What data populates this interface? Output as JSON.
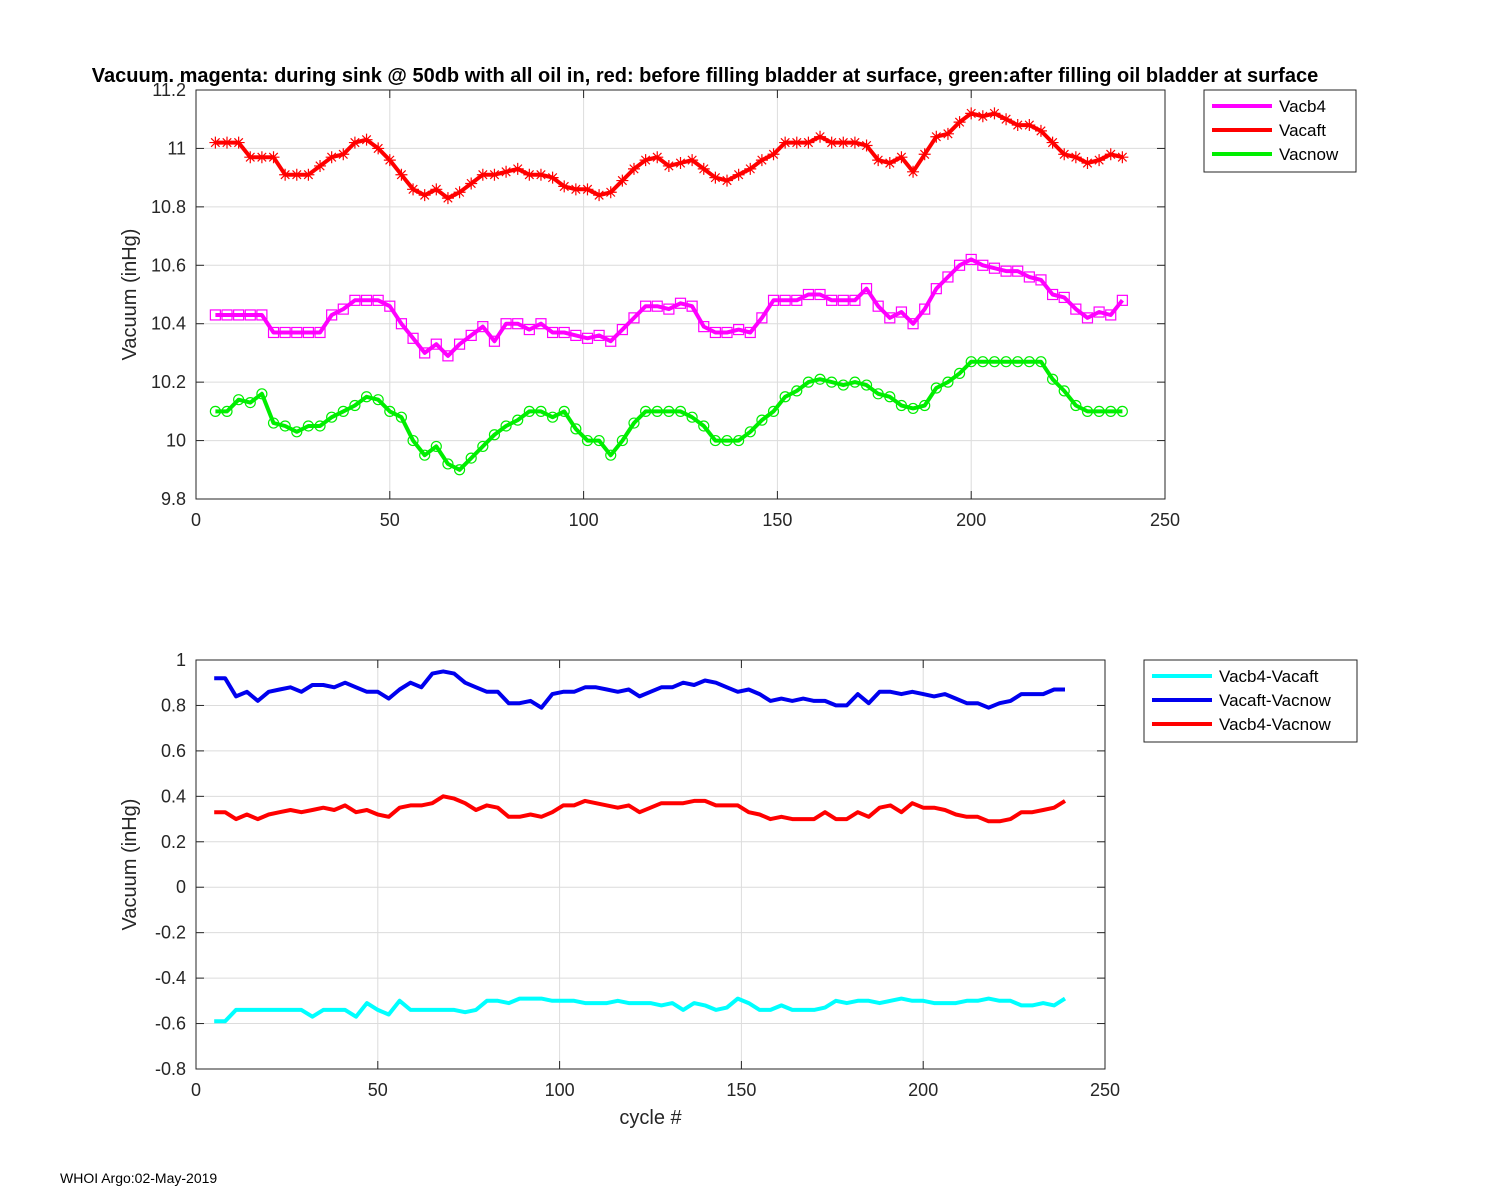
{
  "title": "Vacuum. magenta: during sink @ 50db with all oil in, red: before filling bladder at surface, green:after filling oil bladder at surface",
  "footer": "WHOI Argo:02-May-2019",
  "chart_data": [
    {
      "type": "line",
      "title": "Vacuum. magenta: during sink @ 50db with all oil in, red: before filling bladder at surface, green:after filling oil bladder at surface",
      "xlabel": "",
      "ylabel": "Vacuum (inHg)",
      "xlim": [
        0,
        250
      ],
      "ylim": [
        9.8,
        11.2
      ],
      "xticks": [
        0,
        50,
        100,
        150,
        200,
        250
      ],
      "yticks": [
        9.8,
        10,
        10.2,
        10.4,
        10.6,
        10.8,
        11,
        11.2
      ],
      "xtick_labels": [
        "0",
        "50",
        "100",
        "150",
        "200",
        "250"
      ],
      "ytick_labels": [
        "9.8",
        "10",
        "10.2",
        "10.4",
        "10.6",
        "10.8",
        "11",
        "11.2"
      ],
      "grid": true,
      "legend_position": "outside-top-right",
      "series": [
        {
          "name": "Vacb4",
          "color": "#ff00ff",
          "marker": "square",
          "x": [
            5,
            8,
            11,
            14,
            17,
            20,
            23,
            26,
            29,
            32,
            35,
            38,
            41,
            44,
            47,
            50,
            53,
            56,
            59,
            62,
            65,
            68,
            71,
            74,
            77,
            80,
            83,
            86,
            89,
            92,
            95,
            98,
            101,
            104,
            107,
            110,
            113,
            116,
            119,
            122,
            125,
            128,
            131,
            134,
            137,
            140,
            143,
            146,
            149,
            152,
            155,
            158,
            161,
            164,
            167,
            170,
            173,
            176,
            179,
            182,
            185,
            188,
            191,
            194,
            197,
            200,
            203,
            206,
            209,
            212,
            215,
            218,
            221,
            224,
            227,
            230,
            233,
            236,
            239
          ],
          "y": [
            10.43,
            10.43,
            10.43,
            10.43,
            10.43,
            10.37,
            10.37,
            10.37,
            10.37,
            10.37,
            10.43,
            10.45,
            10.48,
            10.48,
            10.48,
            10.46,
            10.4,
            10.35,
            10.3,
            10.33,
            10.29,
            10.33,
            10.36,
            10.39,
            10.34,
            10.4,
            10.4,
            10.38,
            10.4,
            10.37,
            10.37,
            10.36,
            10.35,
            10.36,
            10.34,
            10.38,
            10.42,
            10.46,
            10.46,
            10.45,
            10.47,
            10.46,
            10.39,
            10.37,
            10.37,
            10.38,
            10.37,
            10.42,
            10.48,
            10.48,
            10.48,
            10.5,
            10.5,
            10.48,
            10.48,
            10.48,
            10.52,
            10.46,
            10.42,
            10.44,
            10.4,
            10.45,
            10.52,
            10.56,
            10.6,
            10.62,
            10.6,
            10.59,
            10.58,
            10.58,
            10.56,
            10.55,
            10.5,
            10.49,
            10.45,
            10.42,
            10.44,
            10.43,
            10.48
          ]
        },
        {
          "name": "Vacaft",
          "color": "#ff0000",
          "marker": "star",
          "x": [
            5,
            8,
            11,
            14,
            17,
            20,
            23,
            26,
            29,
            32,
            35,
            38,
            41,
            44,
            47,
            50,
            53,
            56,
            59,
            62,
            65,
            68,
            71,
            74,
            77,
            80,
            83,
            86,
            89,
            92,
            95,
            98,
            101,
            104,
            107,
            110,
            113,
            116,
            119,
            122,
            125,
            128,
            131,
            134,
            137,
            140,
            143,
            146,
            149,
            152,
            155,
            158,
            161,
            164,
            167,
            170,
            173,
            176,
            179,
            182,
            185,
            188,
            191,
            194,
            197,
            200,
            203,
            206,
            209,
            212,
            215,
            218,
            221,
            224,
            227,
            230,
            233,
            236,
            239
          ],
          "y": [
            11.02,
            11.02,
            11.02,
            10.97,
            10.97,
            10.97,
            10.91,
            10.91,
            10.91,
            10.94,
            10.97,
            10.98,
            11.02,
            11.03,
            11.0,
            10.96,
            10.91,
            10.86,
            10.84,
            10.86,
            10.83,
            10.85,
            10.88,
            10.91,
            10.91,
            10.92,
            10.93,
            10.91,
            10.91,
            10.9,
            10.87,
            10.86,
            10.86,
            10.84,
            10.85,
            10.89,
            10.93,
            10.96,
            10.97,
            10.94,
            10.95,
            10.96,
            10.93,
            10.9,
            10.89,
            10.91,
            10.93,
            10.96,
            10.98,
            11.02,
            11.02,
            11.02,
            11.04,
            11.02,
            11.02,
            11.02,
            11.01,
            10.96,
            10.95,
            10.97,
            10.92,
            10.98,
            11.04,
            11.05,
            11.09,
            11.12,
            11.11,
            11.12,
            11.1,
            11.08,
            11.08,
            11.06,
            11.02,
            10.98,
            10.97,
            10.95,
            10.96,
            10.98,
            10.97
          ]
        },
        {
          "name": "Vacnow",
          "color": "#00ee00",
          "marker": "circle",
          "x": [
            5,
            8,
            11,
            14,
            17,
            20,
            23,
            26,
            29,
            32,
            35,
            38,
            41,
            44,
            47,
            50,
            53,
            56,
            59,
            62,
            65,
            68,
            71,
            74,
            77,
            80,
            83,
            86,
            89,
            92,
            95,
            98,
            101,
            104,
            107,
            110,
            113,
            116,
            119,
            122,
            125,
            128,
            131,
            134,
            137,
            140,
            143,
            146,
            149,
            152,
            155,
            158,
            161,
            164,
            167,
            170,
            173,
            176,
            179,
            182,
            185,
            188,
            191,
            194,
            197,
            200,
            203,
            206,
            209,
            212,
            215,
            218,
            221,
            224,
            227,
            230,
            233,
            236,
            239
          ],
          "y": [
            10.1,
            10.1,
            10.14,
            10.13,
            10.16,
            10.06,
            10.05,
            10.03,
            10.05,
            10.05,
            10.08,
            10.1,
            10.12,
            10.15,
            10.14,
            10.1,
            10.08,
            10.0,
            9.95,
            9.98,
            9.92,
            9.9,
            9.94,
            9.98,
            10.02,
            10.05,
            10.07,
            10.1,
            10.1,
            10.08,
            10.1,
            10.04,
            10.0,
            10.0,
            9.95,
            10.0,
            10.06,
            10.1,
            10.1,
            10.1,
            10.1,
            10.08,
            10.05,
            10.0,
            10.0,
            10.0,
            10.03,
            10.07,
            10.1,
            10.15,
            10.17,
            10.2,
            10.21,
            10.2,
            10.19,
            10.2,
            10.19,
            10.16,
            10.15,
            10.12,
            10.11,
            10.12,
            10.18,
            10.2,
            10.23,
            10.27,
            10.27,
            10.27,
            10.27,
            10.27,
            10.27,
            10.27,
            10.21,
            10.17,
            10.12,
            10.1,
            10.1,
            10.1,
            10.1
          ]
        }
      ]
    },
    {
      "type": "line",
      "title": "",
      "xlabel": "cycle #",
      "ylabel": "Vacuum (inHg)",
      "xlim": [
        0,
        250
      ],
      "ylim": [
        -0.8,
        1
      ],
      "xticks": [
        0,
        50,
        100,
        150,
        200,
        250
      ],
      "yticks": [
        -0.8,
        -0.6,
        -0.4,
        -0.2,
        0,
        0.2,
        0.4,
        0.6,
        0.8,
        1
      ],
      "xtick_labels": [
        "0",
        "50",
        "100",
        "150",
        "200",
        "250"
      ],
      "ytick_labels": [
        "-0.8",
        "-0.6",
        "-0.4",
        "-0.2",
        "0",
        "0.2",
        "0.4",
        "0.6",
        "0.8",
        "1"
      ],
      "grid": true,
      "legend_position": "outside-top-right",
      "series": [
        {
          "name": "Vacb4-Vacaft",
          "color": "#00ffff",
          "x": [
            5,
            8,
            11,
            14,
            17,
            20,
            23,
            26,
            29,
            32,
            35,
            38,
            41,
            44,
            47,
            50,
            53,
            56,
            59,
            62,
            65,
            68,
            71,
            74,
            77,
            80,
            83,
            86,
            89,
            92,
            95,
            98,
            101,
            104,
            107,
            110,
            113,
            116,
            119,
            122,
            125,
            128,
            131,
            134,
            137,
            140,
            143,
            146,
            149,
            152,
            155,
            158,
            161,
            164,
            167,
            170,
            173,
            176,
            179,
            182,
            185,
            188,
            191,
            194,
            197,
            200,
            203,
            206,
            209,
            212,
            215,
            218,
            221,
            224,
            227,
            230,
            233,
            236,
            239
          ],
          "y": [
            -0.59,
            -0.59,
            -0.54,
            -0.54,
            -0.54,
            -0.54,
            -0.54,
            -0.54,
            -0.54,
            -0.57,
            -0.54,
            -0.54,
            -0.54,
            -0.57,
            -0.51,
            -0.54,
            -0.56,
            -0.5,
            -0.54,
            -0.54,
            -0.54,
            -0.54,
            -0.54,
            -0.55,
            -0.54,
            -0.5,
            -0.5,
            -0.51,
            -0.49,
            -0.49,
            -0.49,
            -0.5,
            -0.5,
            -0.5,
            -0.51,
            -0.51,
            -0.51,
            -0.5,
            -0.51,
            -0.51,
            -0.51,
            -0.52,
            -0.51,
            -0.54,
            -0.51,
            -0.52,
            -0.54,
            -0.53,
            -0.49,
            -0.51,
            -0.54,
            -0.54,
            -0.52,
            -0.54,
            -0.54,
            -0.54,
            -0.53,
            -0.5,
            -0.51,
            -0.5,
            -0.5,
            -0.51,
            -0.5,
            -0.49,
            -0.5,
            -0.5,
            -0.51,
            -0.51,
            -0.51,
            -0.5,
            -0.5,
            -0.49,
            -0.5,
            -0.5,
            -0.52,
            -0.52,
            -0.51,
            -0.52,
            -0.49
          ]
        },
        {
          "name": "Vacaft-Vacnow",
          "color": "#0000ee",
          "x": [
            5,
            8,
            11,
            14,
            17,
            20,
            23,
            26,
            29,
            32,
            35,
            38,
            41,
            44,
            47,
            50,
            53,
            56,
            59,
            62,
            65,
            68,
            71,
            74,
            77,
            80,
            83,
            86,
            89,
            92,
            95,
            98,
            101,
            104,
            107,
            110,
            113,
            116,
            119,
            122,
            125,
            128,
            131,
            134,
            137,
            140,
            143,
            146,
            149,
            152,
            155,
            158,
            161,
            164,
            167,
            170,
            173,
            176,
            179,
            182,
            185,
            188,
            191,
            194,
            197,
            200,
            203,
            206,
            209,
            212,
            215,
            218,
            221,
            224,
            227,
            230,
            233,
            236,
            239
          ],
          "y": [
            0.92,
            0.92,
            0.84,
            0.86,
            0.82,
            0.86,
            0.87,
            0.88,
            0.86,
            0.89,
            0.89,
            0.88,
            0.9,
            0.88,
            0.86,
            0.86,
            0.83,
            0.87,
            0.9,
            0.88,
            0.94,
            0.95,
            0.94,
            0.9,
            0.88,
            0.86,
            0.86,
            0.81,
            0.81,
            0.82,
            0.79,
            0.85,
            0.86,
            0.86,
            0.88,
            0.88,
            0.87,
            0.86,
            0.87,
            0.84,
            0.86,
            0.88,
            0.88,
            0.9,
            0.89,
            0.91,
            0.9,
            0.88,
            0.86,
            0.87,
            0.85,
            0.82,
            0.83,
            0.82,
            0.83,
            0.82,
            0.82,
            0.8,
            0.8,
            0.85,
            0.81,
            0.86,
            0.86,
            0.85,
            0.86,
            0.85,
            0.84,
            0.85,
            0.83,
            0.81,
            0.81,
            0.79,
            0.81,
            0.82,
            0.85,
            0.85,
            0.85,
            0.87,
            0.87
          ]
        },
        {
          "name": "Vacb4-Vacnow",
          "color": "#ff0000",
          "x": [
            5,
            8,
            11,
            14,
            17,
            20,
            23,
            26,
            29,
            32,
            35,
            38,
            41,
            44,
            47,
            50,
            53,
            56,
            59,
            62,
            65,
            68,
            71,
            74,
            77,
            80,
            83,
            86,
            89,
            92,
            95,
            98,
            101,
            104,
            107,
            110,
            113,
            116,
            119,
            122,
            125,
            128,
            131,
            134,
            137,
            140,
            143,
            146,
            149,
            152,
            155,
            158,
            161,
            164,
            167,
            170,
            173,
            176,
            179,
            182,
            185,
            188,
            191,
            194,
            197,
            200,
            203,
            206,
            209,
            212,
            215,
            218,
            221,
            224,
            227,
            230,
            233,
            236,
            239
          ],
          "y": [
            0.33,
            0.33,
            0.3,
            0.32,
            0.3,
            0.32,
            0.33,
            0.34,
            0.33,
            0.34,
            0.35,
            0.34,
            0.36,
            0.33,
            0.34,
            0.32,
            0.31,
            0.35,
            0.36,
            0.36,
            0.37,
            0.4,
            0.39,
            0.37,
            0.34,
            0.36,
            0.35,
            0.31,
            0.31,
            0.32,
            0.31,
            0.33,
            0.36,
            0.36,
            0.38,
            0.37,
            0.36,
            0.35,
            0.36,
            0.33,
            0.35,
            0.37,
            0.37,
            0.37,
            0.38,
            0.38,
            0.36,
            0.36,
            0.36,
            0.33,
            0.32,
            0.3,
            0.31,
            0.3,
            0.3,
            0.3,
            0.33,
            0.3,
            0.3,
            0.33,
            0.31,
            0.35,
            0.36,
            0.33,
            0.37,
            0.35,
            0.35,
            0.34,
            0.32,
            0.31,
            0.31,
            0.29,
            0.29,
            0.3,
            0.33,
            0.33,
            0.34,
            0.35,
            0.38
          ]
        }
      ]
    }
  ]
}
